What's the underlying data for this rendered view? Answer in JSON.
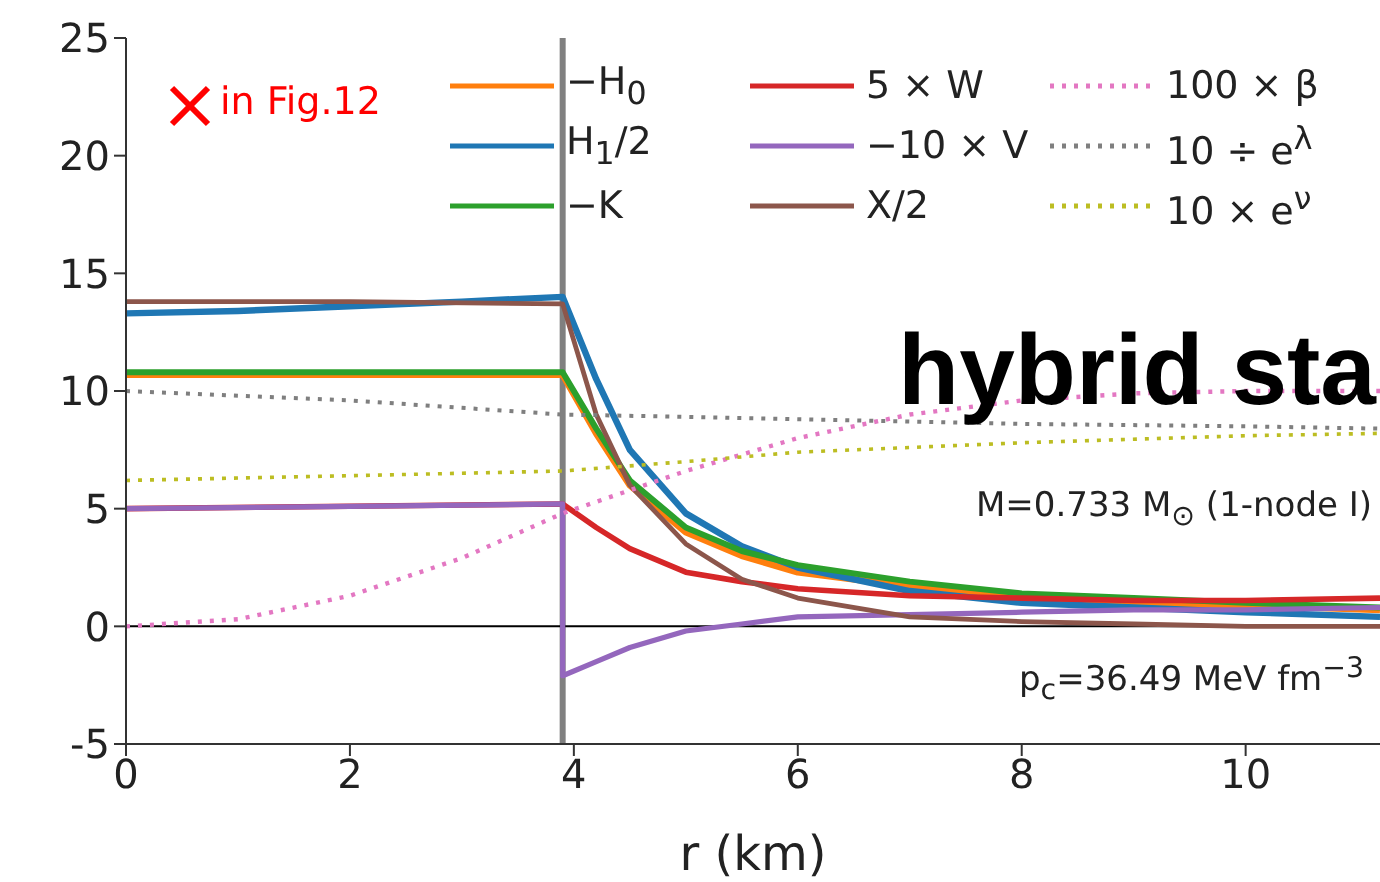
{
  "chart_data": {
    "type": "line",
    "title": "hybrid sta",
    "xlabel": "r (km)",
    "xlim": [
      0,
      11.2
    ],
    "xticks": [
      0,
      2,
      4,
      6,
      8,
      10
    ],
    "ylim": [
      -5,
      25
    ],
    "yticks": [
      -5,
      0,
      5,
      10,
      15,
      20,
      25
    ],
    "legend": "top",
    "annotations": [
      "in Fig.12",
      "M=0.733 M$_{⊙}$ (1-node I)",
      "p$_{c}$=36.49 MeV fm$^{−3}$"
    ],
    "ref_lines": [
      {
        "axis": "x",
        "value": 3.9,
        "color": "#808080"
      },
      {
        "axis": "y",
        "value": 0,
        "color": "#000000"
      }
    ],
    "series": [
      {
        "name": "−H$_{0}$",
        "color": "#ff7f0e",
        "line_style": "solid",
        "x": [
          0,
          2,
          3.9,
          4.2,
          4.5,
          5,
          5.5,
          6,
          7,
          8,
          9,
          10,
          11.2
        ],
        "values": [
          10.7,
          10.7,
          10.7,
          8.2,
          6.0,
          4.0,
          3.0,
          2.3,
          1.7,
          1.3,
          1.0,
          0.9,
          0.7
        ]
      },
      {
        "name": "H$_{1}$/2",
        "color": "#1f77b4",
        "line_style": "solid",
        "x": [
          0,
          1,
          2,
          3,
          3.9,
          4.2,
          4.5,
          5,
          5.5,
          6,
          7,
          8,
          9,
          10,
          11.2
        ],
        "values": [
          13.3,
          13.4,
          13.6,
          13.8,
          14.0,
          10.5,
          7.5,
          4.8,
          3.4,
          2.5,
          1.5,
          1.0,
          0.8,
          0.6,
          0.4
        ]
      },
      {
        "name": "−K",
        "color": "#2ca02c",
        "line_style": "solid",
        "x": [
          0,
          2,
          3.9,
          4.2,
          4.5,
          5,
          5.5,
          6,
          7,
          8,
          9,
          10,
          11.2
        ],
        "values": [
          10.8,
          10.8,
          10.8,
          8.4,
          6.2,
          4.2,
          3.2,
          2.6,
          1.9,
          1.4,
          1.2,
          1.0,
          0.8
        ]
      },
      {
        "name": "5 × W",
        "color": "#d62728",
        "line_style": "solid",
        "x": [
          0,
          2,
          3.9,
          4.2,
          4.5,
          5,
          5.5,
          6,
          7,
          8,
          9,
          10,
          11.2
        ],
        "values": [
          5.0,
          5.1,
          5.2,
          4.2,
          3.3,
          2.3,
          1.9,
          1.6,
          1.3,
          1.2,
          1.1,
          1.1,
          1.2
        ]
      },
      {
        "name": "−10 × V",
        "color": "#9467bd",
        "line_style": "solid",
        "x": [
          0,
          2,
          3.9,
          3.9,
          4.2,
          4.5,
          5,
          5.5,
          6,
          7,
          8,
          9,
          10,
          11.2
        ],
        "values": [
          5.0,
          5.1,
          5.2,
          -2.1,
          -1.5,
          -0.9,
          -0.2,
          0.1,
          0.4,
          0.5,
          0.6,
          0.7,
          0.7,
          0.8
        ]
      },
      {
        "name": "X/2",
        "color": "#8c564b",
        "line_style": "solid",
        "x": [
          0,
          2,
          3.9,
          4.2,
          4.5,
          5,
          5.5,
          6,
          7,
          8,
          9,
          10,
          11.2
        ],
        "values": [
          13.8,
          13.8,
          13.7,
          9.0,
          6.0,
          3.5,
          2.0,
          1.2,
          0.4,
          0.2,
          0.1,
          0.0,
          0.0
        ]
      },
      {
        "name": "100 × β",
        "color": "#e377c2",
        "line_style": "dotted",
        "x": [
          0,
          1,
          2,
          3,
          3.9,
          5,
          6,
          7,
          8,
          9,
          10,
          11.2
        ],
        "values": [
          0,
          0.3,
          1.3,
          2.9,
          4.8,
          6.6,
          8.0,
          9.0,
          9.6,
          9.9,
          10.0,
          10.0
        ]
      },
      {
        "name": "10 ÷ e$^{λ}$",
        "color": "#7f7f7f",
        "line_style": "dotted",
        "x": [
          0,
          2,
          3.9,
          5,
          6,
          8,
          10,
          11.2
        ],
        "values": [
          10,
          9.6,
          9.0,
          8.9,
          8.8,
          8.6,
          8.5,
          8.4
        ]
      },
      {
        "name": "10 × e$^{ν}$",
        "color": "#bcbd22",
        "line_style": "dotted",
        "x": [
          0,
          2,
          3.9,
          5,
          6,
          8,
          10,
          11.2
        ],
        "values": [
          6.2,
          6.4,
          6.6,
          7.0,
          7.4,
          7.8,
          8.1,
          8.2
        ]
      }
    ]
  }
}
